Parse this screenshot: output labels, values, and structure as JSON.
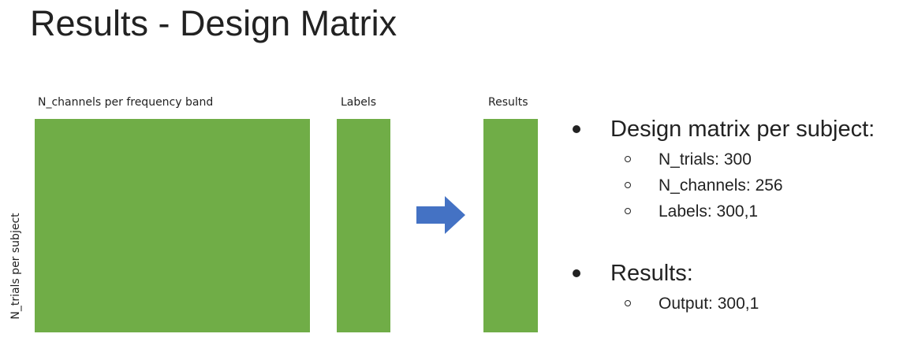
{
  "title": "Results - Design Matrix",
  "diagram": {
    "block_color": "#70AD47",
    "arrow_color": "#4472C4",
    "caption_channels": "N_channels per frequency band",
    "caption_labels": "Labels",
    "caption_results": "Results",
    "row_label": "N_trials per subject"
  },
  "bullets": [
    {
      "text": "Design matrix per subject:",
      "sub": [
        "N_trials: 300",
        "N_channels: 256",
        "Labels: 300,1"
      ]
    },
    {
      "text": "Results:",
      "sub": [
        "Output: 300,1"
      ]
    }
  ]
}
